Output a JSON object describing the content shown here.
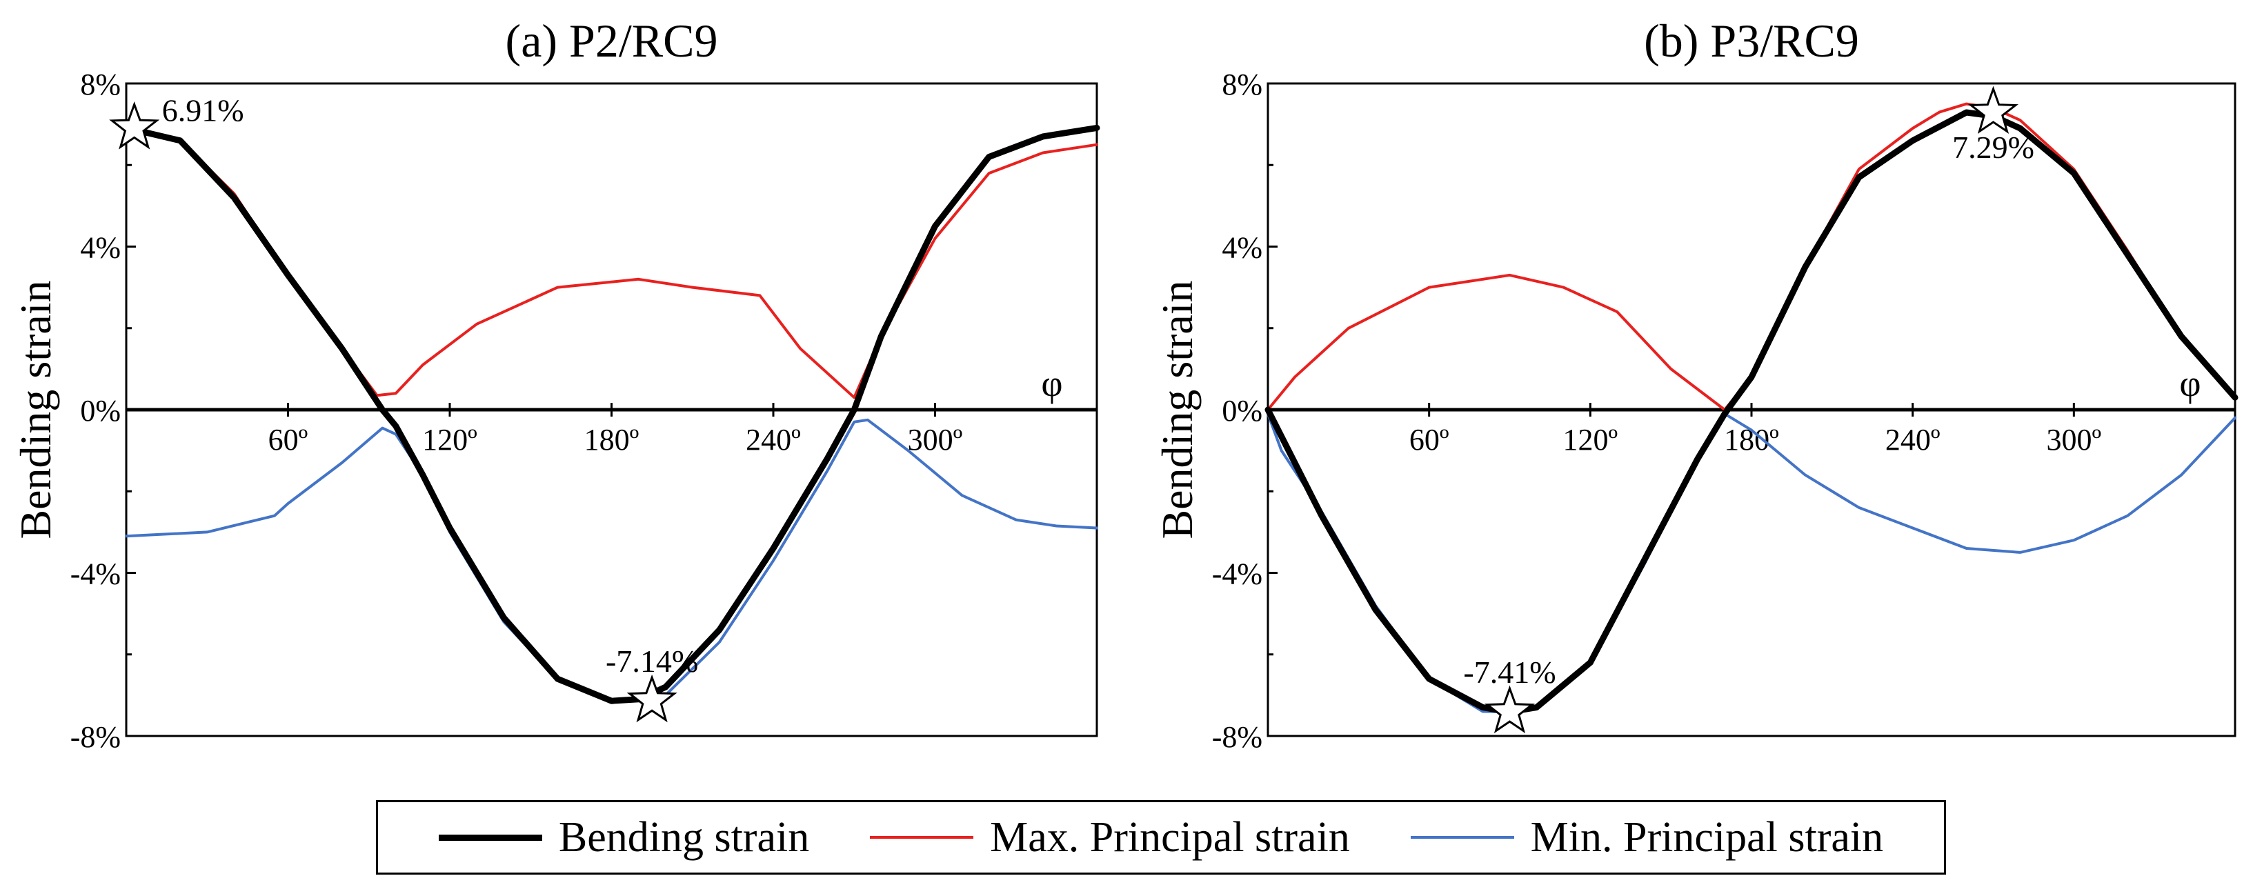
{
  "chart_data": [
    {
      "type": "line",
      "title": "(a) P2/RC9",
      "ylabel": "Bending strain",
      "xlabel": "φ",
      "xlim": [
        0,
        360
      ],
      "ylim": [
        -8,
        8
      ],
      "xticks": [
        60,
        120,
        180,
        240,
        300
      ],
      "xtick_labels": [
        "60º",
        "120º",
        "180º",
        "240º",
        "300º"
      ],
      "yticks": [
        -8,
        -4,
        0,
        4,
        8
      ],
      "ytick_labels": [
        "-8%",
        "-4%",
        "0%",
        "4%",
        "8%"
      ],
      "grid": false,
      "series": [
        {
          "name": "Bending strain",
          "color": "#000000",
          "x": [
            0,
            20,
            40,
            60,
            80,
            95,
            100,
            110,
            120,
            140,
            160,
            180,
            190,
            200,
            220,
            240,
            260,
            270,
            280,
            300,
            320,
            340,
            360
          ],
          "y": [
            6.91,
            6.6,
            5.2,
            3.3,
            1.5,
            0.0,
            -0.4,
            -1.6,
            -2.9,
            -5.1,
            -6.6,
            -7.14,
            -7.1,
            -6.8,
            -5.4,
            -3.4,
            -1.2,
            0.0,
            1.8,
            4.5,
            6.2,
            6.7,
            6.91
          ]
        },
        {
          "name": "Max. Principal strain",
          "color": "#e8211f",
          "x": [
            0,
            20,
            40,
            60,
            80,
            93,
            100,
            110,
            130,
            160,
            190,
            210,
            235,
            250,
            270,
            280,
            300,
            320,
            340,
            360
          ],
          "y": [
            6.91,
            6.6,
            5.3,
            3.3,
            1.5,
            0.35,
            0.4,
            1.1,
            2.1,
            3.0,
            3.2,
            3.0,
            2.8,
            1.5,
            0.3,
            1.8,
            4.2,
            5.8,
            6.3,
            6.5
          ]
        },
        {
          "name": "Min. Principal strain",
          "color": "#4374c7",
          "x": [
            0,
            30,
            55,
            60,
            80,
            95,
            100,
            110,
            120,
            140,
            160,
            180,
            200,
            220,
            240,
            260,
            270,
            275,
            290,
            310,
            330,
            345,
            360
          ],
          "y": [
            -3.1,
            -3.0,
            -2.6,
            -2.3,
            -1.3,
            -0.45,
            -0.6,
            -1.6,
            -3.0,
            -5.2,
            -6.6,
            -7.14,
            -7.0,
            -5.7,
            -3.7,
            -1.5,
            -0.3,
            -0.25,
            -1.0,
            -2.1,
            -2.7,
            -2.85,
            -2.9
          ]
        }
      ],
      "annotations": [
        {
          "text": "6.91%",
          "x": 3,
          "y": 6.91
        },
        {
          "text": "-7.14%",
          "x": 195,
          "y": -7.14
        }
      ]
    },
    {
      "type": "line",
      "title": "(b) P3/RC9",
      "ylabel": "Bending strain",
      "xlabel": "φ",
      "xlim": [
        0,
        360
      ],
      "ylim": [
        -8,
        8
      ],
      "xticks": [
        60,
        120,
        180,
        240,
        300
      ],
      "xtick_labels": [
        "60º",
        "120º",
        "180º",
        "240º",
        "300º"
      ],
      "yticks": [
        -8,
        -4,
        0,
        4,
        8
      ],
      "ytick_labels": [
        "-8%",
        "-4%",
        "0%",
        "4%",
        "8%"
      ],
      "grid": false,
      "series": [
        {
          "name": "Bending strain",
          "color": "#000000",
          "x": [
            0,
            20,
            40,
            60,
            80,
            90,
            100,
            120,
            140,
            160,
            170,
            180,
            200,
            220,
            240,
            260,
            270,
            280,
            300,
            320,
            340,
            360
          ],
          "y": [
            0.0,
            -2.6,
            -4.9,
            -6.6,
            -7.3,
            -7.41,
            -7.3,
            -6.2,
            -3.7,
            -1.2,
            -0.1,
            0.8,
            3.5,
            5.7,
            6.6,
            7.29,
            7.2,
            6.9,
            5.8,
            3.8,
            1.8,
            0.3
          ]
        },
        {
          "name": "Max. Principal strain",
          "color": "#e8211f",
          "x": [
            0,
            10,
            30,
            60,
            90,
            110,
            130,
            150,
            170,
            180,
            200,
            220,
            240,
            250,
            260,
            270,
            280,
            300,
            320,
            340,
            360
          ],
          "y": [
            0.0,
            0.8,
            2.0,
            3.0,
            3.3,
            3.0,
            2.4,
            1.0,
            0.0,
            0.8,
            3.5,
            5.9,
            6.9,
            7.3,
            7.5,
            7.4,
            7.1,
            5.9,
            3.9,
            1.8,
            0.3
          ]
        },
        {
          "name": "Min. Principal strain",
          "color": "#4374c7",
          "x": [
            0,
            5,
            20,
            40,
            60,
            80,
            90,
            100,
            120,
            140,
            160,
            170,
            180,
            200,
            220,
            240,
            260,
            280,
            300,
            320,
            340,
            360
          ],
          "y": [
            -0.1,
            -1.0,
            -2.5,
            -4.8,
            -6.6,
            -7.4,
            -7.41,
            -7.3,
            -6.2,
            -3.8,
            -1.2,
            -0.1,
            -0.5,
            -1.6,
            -2.4,
            -2.9,
            -3.4,
            -3.5,
            -3.2,
            -2.6,
            -1.6,
            -0.2
          ]
        }
      ],
      "annotations": [
        {
          "text": "7.29%",
          "x": 270,
          "y": 7.29
        },
        {
          "text": "-7.41%",
          "x": 90,
          "y": -7.41
        }
      ]
    }
  ],
  "legend": {
    "items": [
      {
        "label": "Bending strain",
        "color": "#000000"
      },
      {
        "label": "Max. Principal strain",
        "color": "#e8211f"
      },
      {
        "label": "Min. Principal strain",
        "color": "#4374c7"
      }
    ]
  }
}
